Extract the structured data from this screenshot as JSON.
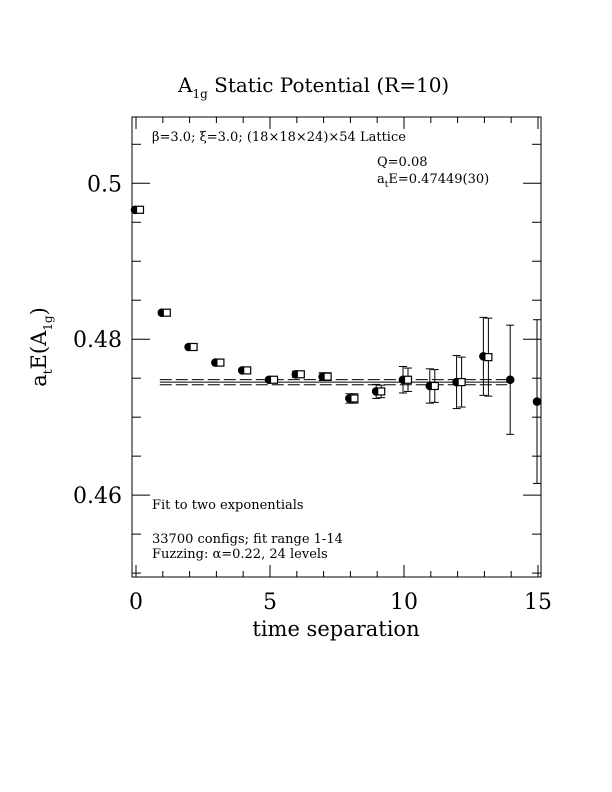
{
  "chart_data": {
    "type": "scatter",
    "title": {
      "main": "A",
      "sub": "1g",
      "rest": " Static Potential (R=10)"
    },
    "xlabel": "time separation",
    "ylabel": {
      "prefix": "a",
      "prefix_sub": "t",
      "mid": "E(A",
      "mid_sub": "1g",
      "suffix": ")"
    },
    "xlim": [
      0,
      15
    ],
    "ylim": [
      0.4495,
      0.5085
    ],
    "x_ticks": [
      0,
      5,
      10,
      15
    ],
    "x_tick_labels": [
      "0",
      "5",
      "10",
      "15"
    ],
    "y_ticks": [
      0.46,
      0.48,
      0.5
    ],
    "y_tick_labels": [
      "0.46",
      "0.48",
      "0.5"
    ],
    "grid": false,
    "annotations": {
      "lattice": "β=3.0; ξ=3.0; (18×18×24)×54 Lattice",
      "q": "Q=0.08",
      "energy": {
        "prefix": "a",
        "sub": "t",
        "rest": "E=0.47449(30)"
      },
      "fit_type": "Fit to two exponentials",
      "configs": "33700 configs; fit range 1-14",
      "fuzzing": "Fuzzing: α=0.22, 24 levels"
    },
    "fit": {
      "x_range": [
        1,
        14
      ],
      "value": 0.47449,
      "error": 0.0003
    },
    "series": [
      {
        "marker": "circle",
        "x": [
          0,
          1,
          2,
          3,
          4,
          5,
          6,
          7,
          8,
          9,
          10,
          11,
          12,
          13,
          14,
          15
        ],
        "y": [
          0.4966,
          0.4834,
          0.479,
          0.477,
          0.476,
          0.4748,
          0.4755,
          0.4752,
          0.4724,
          0.4733,
          0.4748,
          0.474,
          0.4745,
          0.4778,
          0.4748,
          0.472
        ],
        "err": [
          0.0002,
          0.0002,
          0.0002,
          0.0003,
          0.0003,
          0.0003,
          0.0004,
          0.0005,
          0.0006,
          0.0009,
          0.0017,
          0.0022,
          0.0034,
          0.005,
          0.007,
          0.0105
        ]
      },
      {
        "marker": "square",
        "x": [
          0,
          1,
          2,
          3,
          4,
          5,
          6,
          7,
          8,
          9,
          10,
          11,
          12,
          13
        ],
        "y": [
          0.4966,
          0.4834,
          0.479,
          0.477,
          0.476,
          0.4748,
          0.4755,
          0.4752,
          0.4724,
          0.4733,
          0.4748,
          0.474,
          0.4745,
          0.4777
        ],
        "err": [
          0.0002,
          0.0002,
          0.0002,
          0.0003,
          0.0003,
          0.0003,
          0.0004,
          0.0005,
          0.0006,
          0.0008,
          0.0015,
          0.0021,
          0.0032,
          0.005
        ]
      }
    ]
  }
}
